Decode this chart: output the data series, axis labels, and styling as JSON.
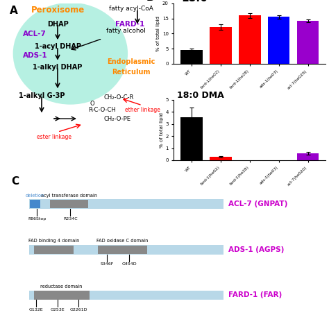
{
  "panel_B_18_values": [
    4.6,
    12.2,
    16.0,
    15.5,
    14.2
  ],
  "panel_B_18_errors": [
    0.3,
    0.9,
    0.8,
    0.6,
    0.4
  ],
  "panel_B_18_colors": [
    "#000000",
    "#ff0000",
    "#ff0000",
    "#0000ff",
    "#9900cc"
  ],
  "panel_B_DMA_values": [
    3.55,
    0.28,
    0.0,
    0.0,
    0.58
  ],
  "panel_B_DMA_errors": [
    0.8,
    0.08,
    0.0,
    0.0,
    0.12
  ],
  "panel_B_DMA_colors": [
    "#000000",
    "#ff0000",
    "#ff0000",
    "#0000ff",
    "#9900cc"
  ],
  "panel_B_xlabels": [
    "WT",
    "fard-1(he02)",
    "fard-1(he28)",
    "ads-1(he03)",
    "acl-7(he020)"
  ],
  "bg_color": "#ffffff",
  "peroxisome_color": "#aaeedd",
  "peroxisome_label_color": "#ff8800",
  "er_color": "#ff8800",
  "ether_color": "#ff0000",
  "ester_color": "#ff0000",
  "acl7_color": "#8800cc",
  "ads1_color": "#8800cc",
  "fard1_color": "#8800cc",
  "gnpat_color": "#cc00cc",
  "agps_color": "#cc00cc",
  "far_color": "#cc00cc",
  "domain_bar_color": "#b8d8e8",
  "domain_box_color": "#888888",
  "deletion_color": "#4488cc"
}
